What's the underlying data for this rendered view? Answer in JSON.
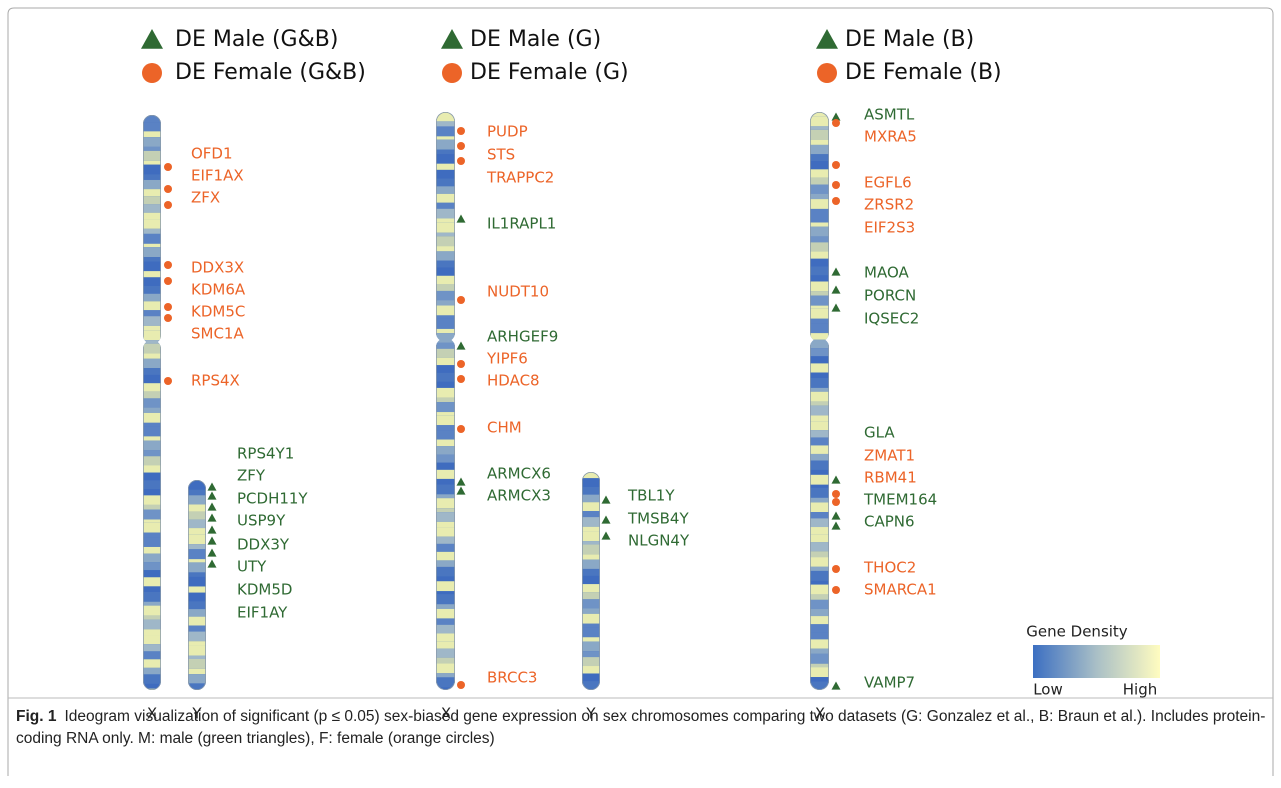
{
  "panels": [
    {
      "legend": [
        {
          "label": "DE Male (G&B)",
          "color": "#2f6a33"
        },
        {
          "label": "DE Female (G&B)",
          "color": "#ec6428"
        }
      ],
      "chromosomes": [
        {
          "label": "X",
          "genes": [
            {
              "name": "OFD1",
              "color": "#ec6428"
            },
            {
              "name": "EIF1AX",
              "color": "#ec6428"
            },
            {
              "name": "ZFX",
              "color": "#ec6428"
            },
            {
              "name": "DDX3X",
              "color": "#ec6428"
            },
            {
              "name": "KDM6A",
              "color": "#ec6428"
            },
            {
              "name": "KDM5C",
              "color": "#ec6428"
            },
            {
              "name": "SMC1A",
              "color": "#ec6428"
            },
            {
              "name": "RPS4X",
              "color": "#ec6428"
            }
          ]
        },
        {
          "label": "Y",
          "genes": [
            {
              "name": "RPS4Y1",
              "color": "#2f6a33"
            },
            {
              "name": "ZFY",
              "color": "#2f6a33"
            },
            {
              "name": "PCDH11Y",
              "color": "#2f6a33"
            },
            {
              "name": "USP9Y",
              "color": "#2f6a33"
            },
            {
              "name": "DDX3Y",
              "color": "#2f6a33"
            },
            {
              "name": "UTY",
              "color": "#2f6a33"
            },
            {
              "name": "KDM5D",
              "color": "#2f6a33"
            },
            {
              "name": "EIF1AY",
              "color": "#2f6a33"
            }
          ]
        }
      ]
    },
    {
      "legend": [
        {
          "label": "DE Male (G)",
          "color": "#2f6a33"
        },
        {
          "label": "DE Female (G)",
          "color": "#ec6428"
        }
      ],
      "chromosomes": [
        {
          "label": "X",
          "genes": [
            {
              "name": "PUDP",
              "color": "#ec6428"
            },
            {
              "name": "STS",
              "color": "#ec6428"
            },
            {
              "name": "TRAPPC2",
              "color": "#ec6428"
            },
            {
              "name": "IL1RAPL1",
              "color": "#2f6a33"
            },
            {
              "name": "NUDT10",
              "color": "#ec6428"
            },
            {
              "name": "ARHGEF9",
              "color": "#2f6a33"
            },
            {
              "name": "YIPF6",
              "color": "#ec6428"
            },
            {
              "name": "HDAC8",
              "color": "#ec6428"
            },
            {
              "name": "CHM",
              "color": "#ec6428"
            },
            {
              "name": "ARMCX6",
              "color": "#2f6a33"
            },
            {
              "name": "ARMCX3",
              "color": "#2f6a33"
            },
            {
              "name": "BRCC3",
              "color": "#ec6428"
            }
          ]
        },
        {
          "label": "Y",
          "genes": [
            {
              "name": "TBL1Y",
              "color": "#2f6a33"
            },
            {
              "name": "TMSB4Y",
              "color": "#2f6a33"
            },
            {
              "name": "NLGN4Y",
              "color": "#2f6a33"
            }
          ]
        }
      ]
    },
    {
      "legend": [
        {
          "label": "DE Male (B)",
          "color": "#2f6a33"
        },
        {
          "label": "DE Female (B)",
          "color": "#ec6428"
        }
      ],
      "chromosomes": [
        {
          "label": "X",
          "genes": [
            {
              "name": "ASMTL",
              "color": "#2f6a33"
            },
            {
              "name": "MXRA5",
              "color": "#ec6428"
            },
            {
              "name": "EGFL6",
              "color": "#ec6428"
            },
            {
              "name": "ZRSR2",
              "color": "#ec6428"
            },
            {
              "name": "EIF2S3",
              "color": "#ec6428"
            },
            {
              "name": "MAOA",
              "color": "#2f6a33"
            },
            {
              "name": "PORCN",
              "color": "#2f6a33"
            },
            {
              "name": "IQSEC2",
              "color": "#2f6a33"
            },
            {
              "name": "GLA",
              "color": "#2f6a33"
            },
            {
              "name": "ZMAT1",
              "color": "#ec6428"
            },
            {
              "name": "RBM41",
              "color": "#ec6428"
            },
            {
              "name": "TMEM164",
              "color": "#2f6a33"
            },
            {
              "name": "CAPN6",
              "color": "#2f6a33"
            },
            {
              "name": "THOC2",
              "color": "#ec6428"
            },
            {
              "name": "SMARCA1",
              "color": "#ec6428"
            },
            {
              "name": "VAMP7",
              "color": "#2f6a33"
            }
          ]
        }
      ]
    }
  ],
  "density_legend": {
    "title": "Gene Density",
    "low": "Low",
    "high": "High"
  },
  "caption": {
    "label": "Fig. 1",
    "text": "Ideogram visualization of significant (p ≤ 0.05) sex-biased gene expression on sex chromosomes comparing two datasets (G: Gonzalez et al., B: Braun et al.). Includes protein-coding RNA only. M: male (green triangles), F: female (orange circles)"
  }
}
